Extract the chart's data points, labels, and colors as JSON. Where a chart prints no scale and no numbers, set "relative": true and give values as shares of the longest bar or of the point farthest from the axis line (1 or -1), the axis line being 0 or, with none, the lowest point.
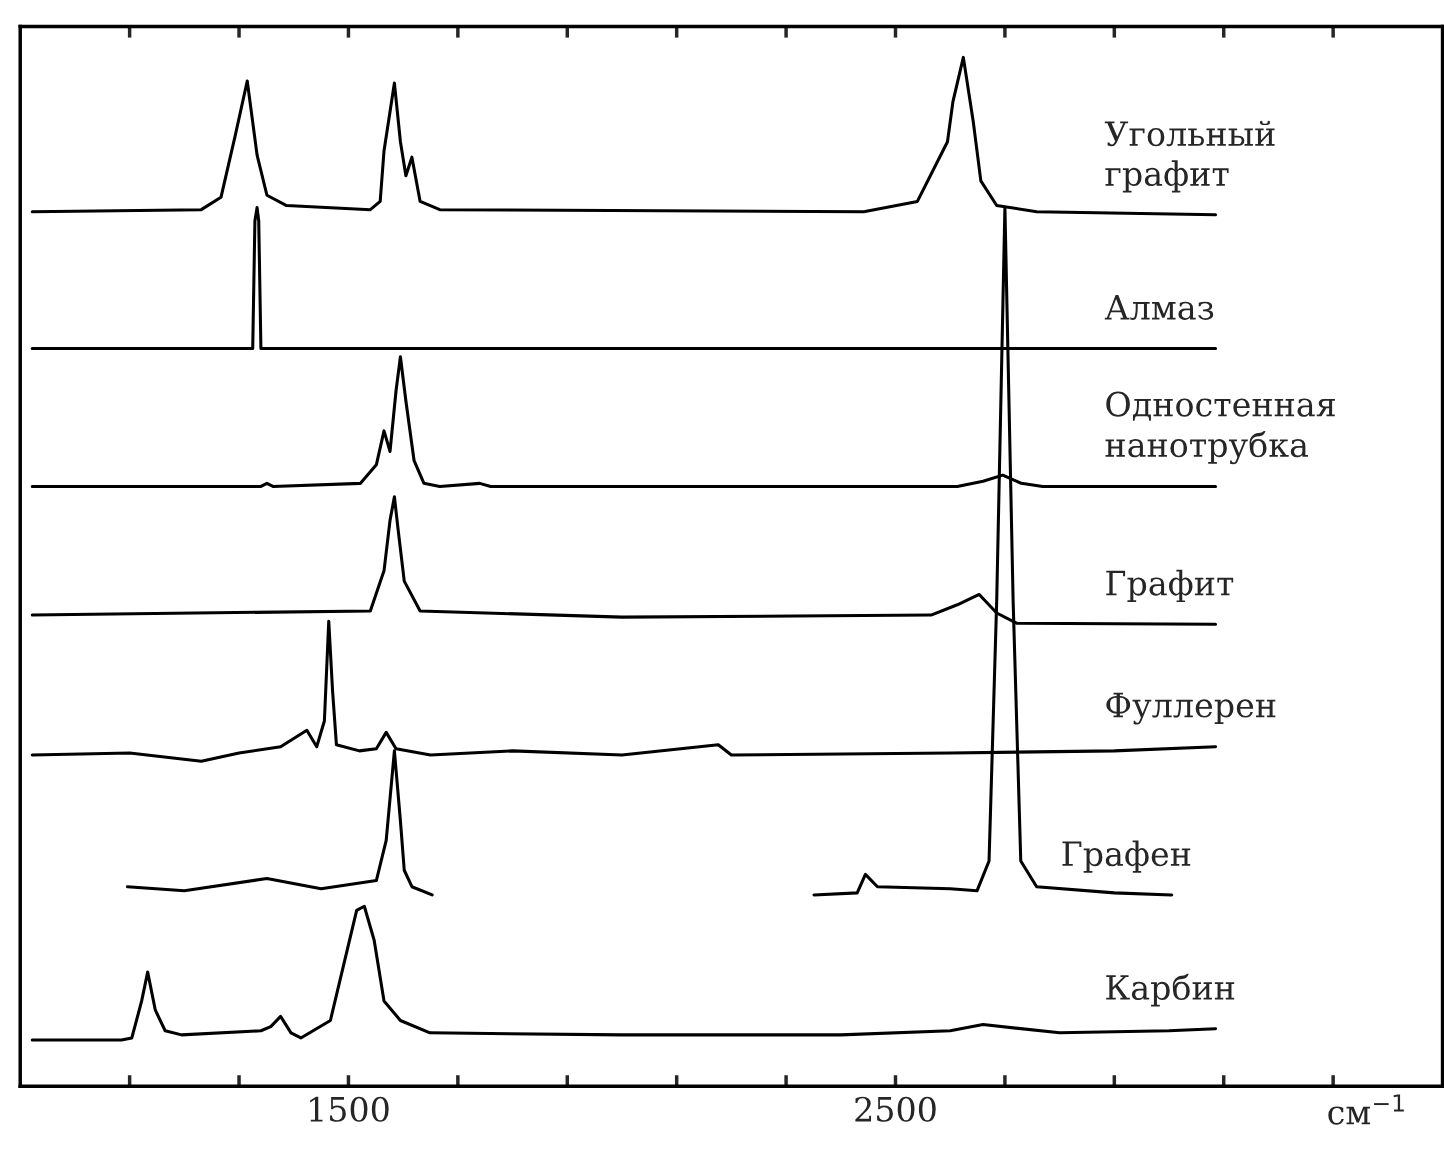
{
  "chart_data": {
    "type": "line",
    "relative": true,
    "xlabel": "см$^{−1}$",
    "xlim": [
      900,
      3500
    ],
    "xticks": [
      {
        "value": 1100,
        "label": null
      },
      {
        "value": 1300,
        "label": null
      },
      1500,
      {
        "value": 1700,
        "label": null
      },
      {
        "value": 1900,
        "label": null
      },
      {
        "value": 2100,
        "label": null
      },
      {
        "value": 2300,
        "label": null
      },
      2500,
      {
        "value": 2700,
        "label": null
      },
      {
        "value": 2900,
        "label": null
      },
      {
        "value": 3100,
        "label": null
      },
      {
        "value": 3300,
        "label": null
      }
    ],
    "tick_labels": "x",
    "grid": false,
    "legend": false,
    "marker": "none",
    "line_style": "solid",
    "series": [
      {
        "name": "Угольный\nграфит",
        "color": "#000000",
        "x": [
          922,
          1231,
          1267,
          1293,
          1315,
          1333,
          1351,
          1387,
          1540,
          1558,
          1565,
          1584,
          1595,
          1605,
          1616,
          1631,
          1667,
          2442,
          2540,
          2595,
          2605,
          2624,
          2642,
          2656,
          2685,
          2758,
          3085
        ],
        "values": [
          0.85,
          0.852,
          0.864,
          0.924,
          0.977,
          0.905,
          0.866,
          0.856,
          0.852,
          0.86,
          0.909,
          0.975,
          0.918,
          0.885,
          0.903,
          0.86,
          0.852,
          0.85,
          0.86,
          0.918,
          0.957,
          1.0,
          0.938,
          0.88,
          0.856,
          0.85,
          0.847
        ]
      },
      {
        "name": "Алмаз",
        "color": "#000000",
        "x": [
          922,
          1325,
          1329,
          1333,
          1336,
          1340,
          3085
        ],
        "values": [
          0.717,
          0.717,
          0.841,
          0.854,
          0.841,
          0.717,
          0.717
        ]
      },
      {
        "name": "Одностенная\nнанотрубка",
        "color": "#000000",
        "x": [
          922,
          1340,
          1351,
          1362,
          1522,
          1551,
          1565,
          1576,
          1587,
          1595,
          1605,
          1620,
          1638,
          1667,
          1740,
          1760,
          2613,
          2660,
          2696,
          2730,
          2769,
          3085
        ],
        "values": [
          0.583,
          0.583,
          0.586,
          0.583,
          0.586,
          0.604,
          0.637,
          0.617,
          0.676,
          0.709,
          0.666,
          0.608,
          0.586,
          0.583,
          0.586,
          0.583,
          0.583,
          0.588,
          0.594,
          0.586,
          0.583,
          0.583
        ]
      },
      {
        "name": "Графит",
        "color": "#000000",
        "x": [
          922,
          1540,
          1565,
          1576,
          1584,
          1591,
          1602,
          1631,
          2000,
          2565,
          2613,
          2653,
          2685,
          2722,
          3085
        ],
        "values": [
          0.458,
          0.462,
          0.501,
          0.55,
          0.573,
          0.54,
          0.491,
          0.462,
          0.456,
          0.458,
          0.468,
          0.478,
          0.46,
          0.45,
          0.449
        ]
      },
      {
        "name": "Фуллерен",
        "color": "#000000",
        "x": [
          922,
          1100,
          1231,
          1300,
          1376,
          1424,
          1442,
          1456,
          1464,
          1471,
          1478,
          1520,
          1551,
          1569,
          1587,
          1650,
          1800,
          2000,
          2176,
          2200,
          2600,
          2900,
          3085
        ],
        "values": [
          0.322,
          0.324,
          0.316,
          0.324,
          0.33,
          0.346,
          0.33,
          0.355,
          0.452,
          0.384,
          0.332,
          0.326,
          0.328,
          0.344,
          0.328,
          0.322,
          0.326,
          0.322,
          0.332,
          0.322,
          0.324,
          0.326,
          0.33
        ]
      },
      {
        "name": "Графен",
        "color": "#000000",
        "x": [
          1096,
          1200,
          1351,
          1450,
          1551,
          1569,
          1584,
          1595,
          1602,
          1616,
          1653,
          2000,
          2351,
          2430,
          2445,
          2467,
          2600,
          2649,
          2671,
          2685,
          2700,
          2715,
          2729,
          2758,
          2900,
          3005
        ],
        "values": [
          0.194,
          0.19,
          0.202,
          0.192,
          0.2,
          0.239,
          0.326,
          0.258,
          0.21,
          0.194,
          0.186,
          null,
          0.186,
          0.188,
          0.206,
          0.194,
          0.192,
          0.19,
          0.219,
          0.472,
          0.854,
          0.472,
          0.219,
          0.194,
          0.188,
          0.186
        ]
      },
      {
        "name": "Карбин",
        "color": "#000000",
        "x": [
          922,
          1085,
          1104,
          1122,
          1133,
          1147,
          1165,
          1195,
          1340,
          1358,
          1376,
          1395,
          1413,
          1467,
          1493,
          1515,
          1529,
          1547,
          1565,
          1595,
          1649,
          2000,
          2400,
          2600,
          2660,
          2800,
          3000,
          3085
        ],
        "values": [
          0.045,
          0.045,
          0.047,
          0.083,
          0.111,
          0.074,
          0.054,
          0.05,
          0.054,
          0.058,
          0.068,
          0.052,
          0.047,
          0.064,
          0.122,
          0.171,
          0.175,
          0.142,
          0.083,
          0.064,
          0.052,
          0.05,
          0.05,
          0.054,
          0.06,
          0.052,
          0.054,
          0.056
        ]
      }
    ]
  }
}
